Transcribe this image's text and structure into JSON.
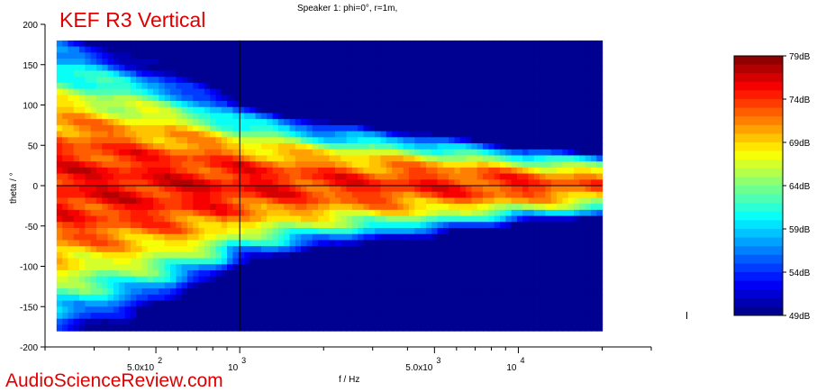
{
  "brand_title": "KEF R3 Vertical",
  "watermark": "AudioScienceReview.com",
  "colors": {
    "brand": "#e00000"
  },
  "chart_data": {
    "type": "heatmap",
    "title": "Speaker 1: phi=0°, r=1m,",
    "xlabel": "f / Hz",
    "ylabel": "theta / °",
    "x_scale": "log",
    "xlim": [
      200,
      30000
    ],
    "ylim": [
      -200,
      200
    ],
    "data_x_range": [
      220,
      20000
    ],
    "data_y_range": [
      -180,
      180
    ],
    "y_ticks": [
      "200",
      "150",
      "100",
      "50",
      "0",
      "-50",
      "-100",
      "-150",
      "-200"
    ],
    "y_tick_values": [
      200,
      150,
      100,
      50,
      0,
      -50,
      -100,
      -150,
      -200
    ],
    "x_ticks": [
      {
        "value": 500,
        "label": "5.0x10",
        "exp": "2"
      },
      {
        "value": 1000,
        "label": "10",
        "exp": "3"
      },
      {
        "value": 5000,
        "label": "5.0x10",
        "exp": "3"
      },
      {
        "value": 10000,
        "label": "10",
        "exp": "4"
      }
    ],
    "crosshair": {
      "x": 1000,
      "y": 0
    },
    "colorbar": {
      "min": 49,
      "max": 79,
      "ticks": [
        "79dB",
        "74dB",
        "69dB",
        "64dB",
        "59dB",
        "54dB",
        "49dB"
      ],
      "tick_values": [
        79,
        74,
        69,
        64,
        59,
        54,
        49
      ]
    },
    "directivity_model": {
      "freqs_hz": [
        220,
        500,
        1000,
        2000,
        5000,
        10000,
        20000
      ],
      "half_width_deg": [
        180,
        140,
        95,
        75,
        60,
        45,
        40
      ],
      "on_axis_db": [
        75,
        75,
        75,
        74,
        74,
        74,
        72
      ]
    }
  }
}
